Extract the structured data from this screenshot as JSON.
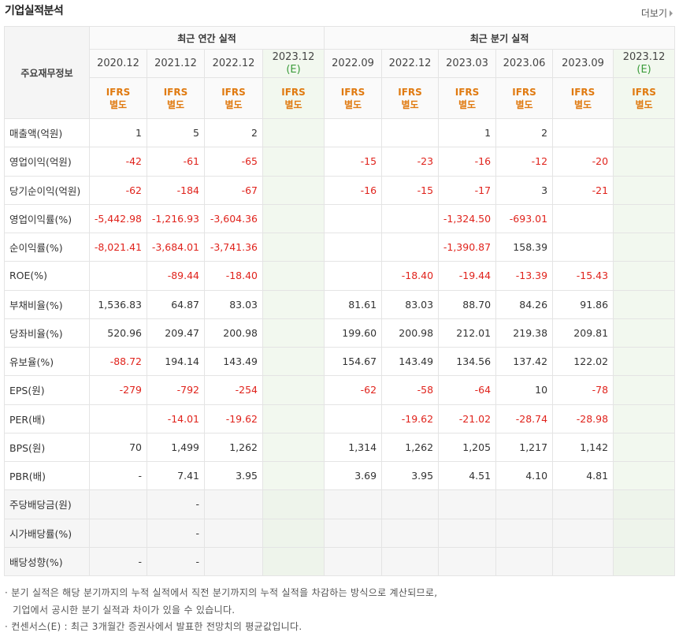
{
  "header": {
    "title": "기업실적분석",
    "more": "더보기"
  },
  "table": {
    "corner": "주요재무정보",
    "groups": [
      {
        "label": "최근 연간 실적",
        "span": 4
      },
      {
        "label": "최근 분기 실적",
        "span": 6
      }
    ],
    "periods": [
      {
        "label": "2020.12"
      },
      {
        "label": "2021.12"
      },
      {
        "label": "2022.12"
      },
      {
        "label": "2023.12",
        "note": "(E)"
      },
      {
        "label": "2022.09"
      },
      {
        "label": "2022.12"
      },
      {
        "label": "2023.03"
      },
      {
        "label": "2023.06"
      },
      {
        "label": "2023.09"
      },
      {
        "label": "2023.12",
        "note": "(E)"
      }
    ],
    "standards": [
      [
        "IFRS",
        "별도"
      ],
      [
        "IFRS",
        "별도"
      ],
      [
        "IFRS",
        "별도"
      ],
      [
        "IFRS",
        "별도"
      ],
      [
        "IFRS",
        "별도"
      ],
      [
        "IFRS",
        "별도"
      ],
      [
        "IFRS",
        "별도"
      ],
      [
        "IFRS",
        "별도"
      ],
      [
        "IFRS",
        "별도"
      ],
      [
        "IFRS",
        "별도"
      ]
    ],
    "rows": [
      {
        "label": "매출액(억원)",
        "cells": [
          "1",
          "5",
          "2",
          null,
          null,
          null,
          "1",
          "2",
          null,
          null
        ]
      },
      {
        "label": "영업이익(억원)",
        "cells": [
          "-42",
          "-61",
          "-65",
          null,
          "-15",
          "-23",
          "-16",
          "-12",
          "-20",
          null
        ]
      },
      {
        "label": "당기순이익(억원)",
        "cells": [
          "-62",
          "-184",
          "-67",
          null,
          "-16",
          "-15",
          "-17",
          "3",
          "-21",
          null
        ]
      },
      {
        "label": "영업이익률(%)",
        "cells": [
          "-5,442.98",
          "-1,216.93",
          "-3,604.36",
          null,
          null,
          null,
          "-1,324.50",
          "-693.01",
          null,
          null
        ]
      },
      {
        "label": "순이익률(%)",
        "cells": [
          "-8,021.41",
          "-3,684.01",
          "-3,741.36",
          null,
          null,
          null,
          "-1,390.87",
          "158.39",
          null,
          null
        ]
      },
      {
        "label": "ROE(%)",
        "cells": [
          null,
          "-89.44",
          "-18.40",
          null,
          null,
          "-18.40",
          "-19.44",
          "-13.39",
          "-15.43",
          null
        ]
      },
      {
        "label": "부채비율(%)",
        "cells": [
          "1,536.83",
          "64.87",
          "83.03",
          null,
          "81.61",
          "83.03",
          "88.70",
          "84.26",
          "91.86",
          null
        ]
      },
      {
        "label": "당좌비율(%)",
        "cells": [
          "520.96",
          "209.47",
          "200.98",
          null,
          "199.60",
          "200.98",
          "212.01",
          "219.38",
          "209.81",
          null
        ]
      },
      {
        "label": "유보율(%)",
        "cells": [
          "-88.72",
          "194.14",
          "143.49",
          null,
          "154.67",
          "143.49",
          "134.56",
          "137.42",
          "122.02",
          null
        ]
      },
      {
        "label": "EPS(원)",
        "cells": [
          "-279",
          "-792",
          "-254",
          null,
          "-62",
          "-58",
          "-64",
          "10",
          "-78",
          null
        ]
      },
      {
        "label": "PER(배)",
        "cells": [
          null,
          "-14.01",
          "-19.62",
          null,
          null,
          "-19.62",
          "-21.02",
          "-28.74",
          "-28.98",
          null
        ]
      },
      {
        "label": "BPS(원)",
        "cells": [
          "70",
          "1,499",
          "1,262",
          null,
          "1,314",
          "1,262",
          "1,205",
          "1,217",
          "1,142",
          null
        ]
      },
      {
        "label": "PBR(배)",
        "cells": [
          "-",
          "7.41",
          "3.95",
          null,
          "3.69",
          "3.95",
          "4.51",
          "4.10",
          "4.81",
          null
        ]
      },
      {
        "label": "주당배당금(원)",
        "cells": [
          null,
          "-",
          null,
          null,
          null,
          null,
          null,
          null,
          null,
          null
        ]
      },
      {
        "label": "시가배당률(%)",
        "cells": [
          null,
          "-",
          null,
          null,
          null,
          null,
          null,
          null,
          null,
          null
        ]
      },
      {
        "label": "배당성향(%)",
        "cells": [
          "-",
          "-",
          null,
          null,
          null,
          null,
          null,
          null,
          null,
          null
        ]
      }
    ]
  },
  "footnotes": [
    "분기 실적은 해당 분기까지의 누적 실적에서 직전 분기까지의 누적 실적을 차감하는 방식으로 계산되므로,",
    "기업에서 공시한 분기 실적과 차이가 있을 수 있습니다.",
    "컨센서스(E) : 최근 3개월간 증권사에서 발표한 전망치의 평균값입니다."
  ]
}
